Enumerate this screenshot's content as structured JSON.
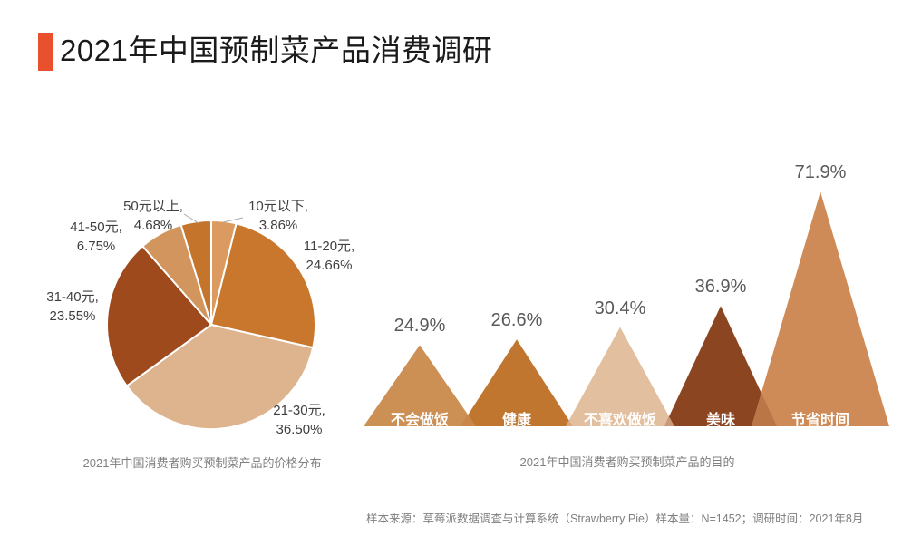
{
  "page": {
    "background": "#FFFFFF"
  },
  "header": {
    "title": "2021年中国预制菜产品消费调研",
    "accent_color": "#E8502E"
  },
  "chart_data": [
    {
      "type": "pie",
      "title": "2021年中国消费者购买预制菜产品的价格分布",
      "start_angle": "top",
      "direction": "clockwise",
      "unit": "%",
      "slices": [
        {
          "label": "10元以下",
          "value": 3.86,
          "label_line1": "10元以下,",
          "display": "3.86%",
          "color": "#DB9B60"
        },
        {
          "label": "11-20元",
          "value": 24.66,
          "label_line1": "11-20元,",
          "display": "24.66%",
          "color": "#C8772C"
        },
        {
          "label": "21-30元",
          "value": 36.5,
          "label_line1": "21-30元,",
          "display": "36.50%",
          "color": "#DDB48D"
        },
        {
          "label": "31-40元",
          "value": 23.55,
          "label_line1": "31-40元,",
          "display": "23.55%",
          "color": "#9E4A1D"
        },
        {
          "label": "41-50元",
          "value": 6.75,
          "label_line1": "41-50元,",
          "display": "6.75%",
          "color": "#D2955E"
        },
        {
          "label": "50元以上",
          "value": 4.68,
          "label_line1": "50元以上,",
          "display": "4.68%",
          "color": "#C4742B"
        }
      ]
    },
    {
      "type": "bar",
      "shape": "triangle",
      "title": "2021年中国消费者购买预制菜产品的目的",
      "unit": "%",
      "categories": [
        "不会做饭",
        "健康",
        "不喜欢做饭",
        "美味",
        "节省时间"
      ],
      "values": [
        24.9,
        26.6,
        30.4,
        36.9,
        71.9
      ],
      "value_labels": [
        "24.9%",
        "26.6%",
        "30.4%",
        "36.9%",
        "71.9%"
      ],
      "colors": [
        "#CC8F54",
        "#C1762F",
        "#E2BF9F",
        "#8C4521",
        "#CE8B57"
      ],
      "value_label_color": "#595959",
      "category_label_color": "#FFFFFF",
      "legend": "none",
      "grid": false
    }
  ],
  "footnote": "样本来源：草莓派数据调查与计算系统（Strawberry Pie）样本量：N=1452；调研时间：2021年8月"
}
